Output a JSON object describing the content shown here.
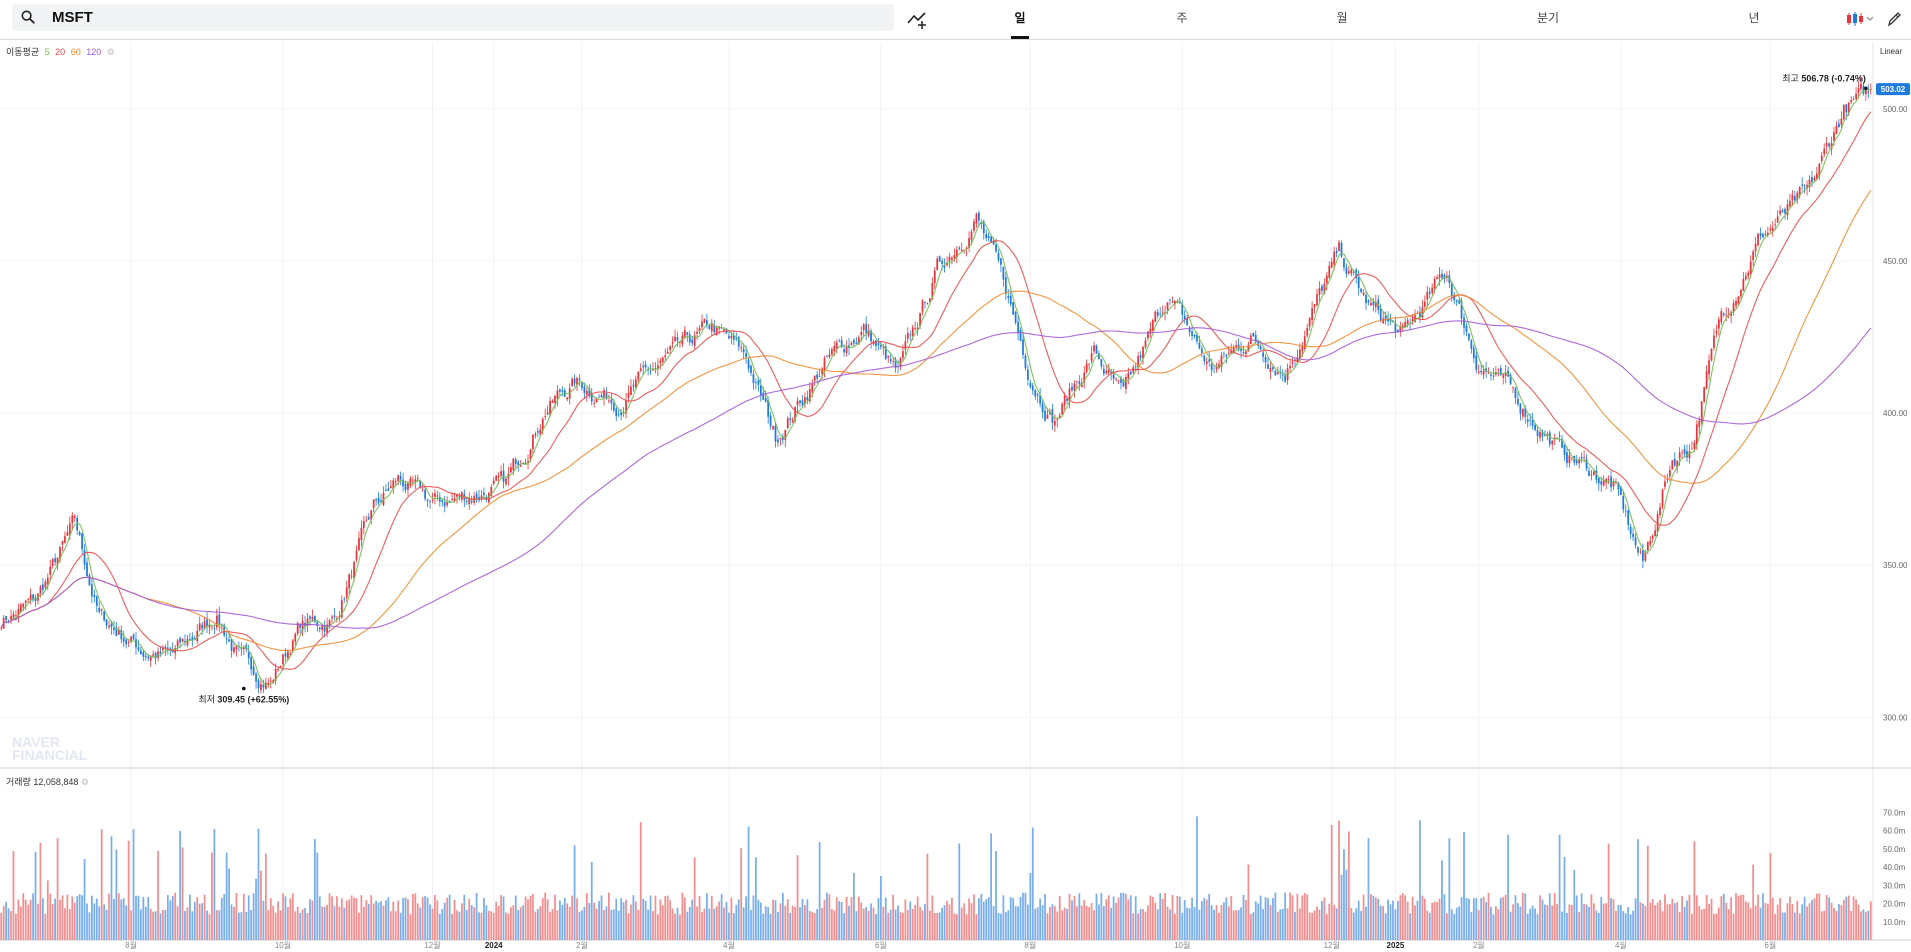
{
  "search": {
    "value": "MSFT",
    "placeholder": ""
  },
  "tabs": [
    {
      "label": "일",
      "active": true
    },
    {
      "label": "주",
      "active": false
    },
    {
      "label": "월",
      "active": false
    },
    {
      "label": "분기",
      "active": false
    },
    {
      "label": "년",
      "active": false
    }
  ],
  "icons": {
    "search": "search-icon",
    "indicator": "add-indicator-icon",
    "chart_type": "candlestick-icon",
    "draw": "pencil-icon"
  },
  "ma_legend": {
    "label": "이동평균",
    "periods": [
      "5",
      "20",
      "60",
      "120"
    ],
    "colors": [
      "#6fbf52",
      "#ee4b4b",
      "#f28a2e",
      "#a35ad8"
    ]
  },
  "scale_mode": "Linear",
  "volume_legend": {
    "label": "거래량",
    "value": "12,058,848"
  },
  "colors": {
    "up": "#e8343a",
    "down": "#1f7ae0",
    "up_vol": "#f48e8e",
    "down_vol": "#78aeed",
    "price_tag": "#1f7ae0"
  },
  "watermark": [
    "NAVER",
    "FINANCIAL"
  ],
  "chart_data": {
    "type": "candlestick",
    "price_axis": {
      "range": [
        284,
        522
      ],
      "ticks": [
        "500.00",
        "450.00",
        "400.00",
        "350.00",
        "300.00"
      ],
      "tick_values": [
        500,
        450,
        400,
        350,
        300
      ]
    },
    "volume_axis": {
      "range": [
        0,
        80
      ],
      "ticks": [
        "70.0m",
        "60.0m",
        "50.0m",
        "40.0m",
        "30.0m",
        "20.0m",
        "10.0m"
      ],
      "tick_values": [
        70,
        60,
        50,
        40,
        30,
        20,
        10
      ]
    },
    "x_labels": [
      {
        "label": "8월",
        "day": 53
      },
      {
        "label": "10월",
        "day": 115
      },
      {
        "label": "12월",
        "day": 176
      },
      {
        "label": "2024",
        "day": 201,
        "bold": true
      },
      {
        "label": "2월",
        "day": 237
      },
      {
        "label": "4월",
        "day": 297
      },
      {
        "label": "6월",
        "day": 359
      },
      {
        "label": "8월",
        "day": 420
      },
      {
        "label": "10월",
        "day": 482
      },
      {
        "label": "12월",
        "day": 543
      },
      {
        "label": "2025",
        "day": 569,
        "bold": true
      },
      {
        "label": "2월",
        "day": 603
      },
      {
        "label": "4월",
        "day": 661
      },
      {
        "label": "6월",
        "day": 722
      }
    ],
    "num_days": 764,
    "price_path": [
      [
        0,
        332
      ],
      [
        14,
        338
      ],
      [
        30,
        363
      ],
      [
        40,
        333
      ],
      [
        58,
        322
      ],
      [
        70,
        320
      ],
      [
        88,
        334
      ],
      [
        98,
        318
      ],
      [
        110,
        312
      ],
      [
        122,
        330
      ],
      [
        136,
        332
      ],
      [
        152,
        368
      ],
      [
        162,
        378
      ],
      [
        176,
        370
      ],
      [
        196,
        374
      ],
      [
        206,
        376
      ],
      [
        222,
        402
      ],
      [
        234,
        410
      ],
      [
        252,
        404
      ],
      [
        268,
        415
      ],
      [
        290,
        428
      ],
      [
        304,
        418
      ],
      [
        316,
        392
      ],
      [
        336,
        416
      ],
      [
        352,
        428
      ],
      [
        366,
        412
      ],
      [
        382,
        447
      ],
      [
        398,
        465
      ],
      [
        410,
        440
      ],
      [
        420,
        413
      ],
      [
        430,
        398
      ],
      [
        446,
        420
      ],
      [
        458,
        404
      ],
      [
        476,
        439
      ],
      [
        494,
        414
      ],
      [
        510,
        425
      ],
      [
        524,
        414
      ],
      [
        546,
        452
      ],
      [
        558,
        435
      ],
      [
        572,
        425
      ],
      [
        590,
        446
      ],
      [
        602,
        418
      ],
      [
        618,
        405
      ],
      [
        636,
        388
      ],
      [
        658,
        376
      ],
      [
        670,
        350
      ],
      [
        682,
        385
      ],
      [
        690,
        390
      ],
      [
        702,
        432
      ],
      [
        718,
        458
      ],
      [
        738,
        472
      ],
      [
        752,
        500
      ],
      [
        764,
        505
      ]
    ],
    "ma_end_values": {
      "5": 501,
      "20": 492,
      "60": 456,
      "120": 427
    },
    "annotations": [
      {
        "label": "최고",
        "value": "506.78",
        "change": "(-0.74%)",
        "day": 761,
        "price": 506.78
      },
      {
        "label": "최저",
        "value": "309.45",
        "change": "(+62.55%)",
        "day": 99,
        "price": 309.45
      }
    ],
    "last_price": "503.02",
    "seed": 7
  }
}
